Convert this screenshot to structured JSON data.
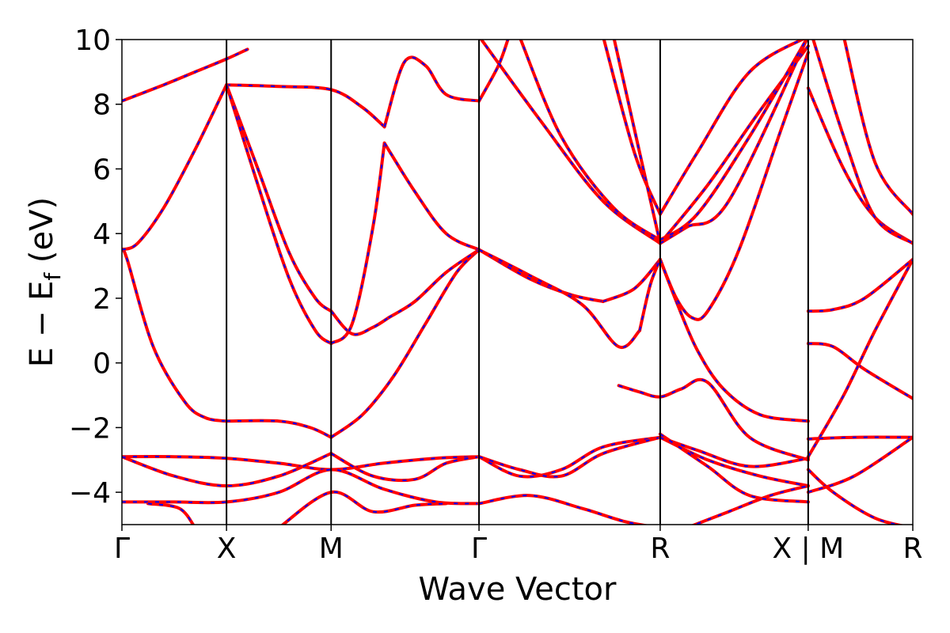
{
  "chart_data": {
    "type": "line",
    "xlabel": "Wave Vector",
    "ylabel_main": "E − E",
    "ylabel_sub": "f",
    "ylabel_unit": " (eV)",
    "ylim": [
      -5,
      10
    ],
    "yticks": [
      10,
      8,
      6,
      4,
      2,
      0,
      -2,
      -4
    ],
    "ytick_labels": [
      "10",
      "8",
      "6",
      "4",
      "2",
      "0",
      "−2",
      "−4"
    ],
    "xlim": [
      0,
      7.6
    ],
    "high_symmetry_points": [
      {
        "label": "Γ",
        "x": 0
      },
      {
        "label": "X",
        "x": 1
      },
      {
        "label": "M",
        "x": 2
      },
      {
        "label": "Γ",
        "x": 3.414
      },
      {
        "label": "R",
        "x": 5.146
      },
      {
        "label": "X | M",
        "x": 6.561
      },
      {
        "label": "R",
        "x": 7.561
      }
    ],
    "colors": {
      "dft": "#ff0000",
      "fit": "#0000ff"
    },
    "bands": [
      {
        "name": "b1",
        "x": [
          0,
          0.05,
          0.3,
          0.6,
          0.8,
          1.0
        ],
        "y": [
          3.5,
          3.2,
          0.5,
          -1.2,
          -1.7,
          -1.8
        ]
      },
      {
        "name": "b2",
        "x": [
          1.0,
          1.5,
          1.8,
          2.0
        ],
        "y": [
          -1.8,
          -1.8,
          -2.0,
          -2.3
        ]
      },
      {
        "name": "b3",
        "x": [
          2.0,
          2.3,
          2.6,
          2.9,
          3.2,
          3.414
        ],
        "y": [
          -2.3,
          -1.6,
          -0.4,
          1.2,
          2.8,
          3.5
        ]
      },
      {
        "name": "b4",
        "x": [
          0,
          0.15,
          0.4,
          0.7,
          1.0
        ],
        "y": [
          3.5,
          3.7,
          4.8,
          6.6,
          8.6
        ]
      },
      {
        "name": "b5",
        "x": [
          1.0,
          1.5,
          2.0,
          2.3,
          2.51
        ],
        "y": [
          8.6,
          8.55,
          8.45,
          7.9,
          7.3
        ]
      },
      {
        "name": "b6",
        "x": [
          1.0,
          1.3,
          1.6,
          1.85,
          2.0
        ],
        "y": [
          8.6,
          6.0,
          3.4,
          2.0,
          1.6
        ]
      },
      {
        "name": "b7",
        "x": [
          1.0,
          1.3,
          1.6,
          1.85,
          2.0
        ],
        "y": [
          8.6,
          5.5,
          2.6,
          1.0,
          0.6
        ]
      },
      {
        "name": "b8",
        "x": [
          2.0,
          2.2,
          2.4,
          2.55
        ],
        "y": [
          1.6,
          0.9,
          1.1,
          1.4
        ]
      },
      {
        "name": "b9",
        "x": [
          2.55,
          2.8,
          3.1,
          3.414
        ],
        "y": [
          1.4,
          1.9,
          2.8,
          3.5
        ]
      },
      {
        "name": "b10",
        "x": [
          2.0,
          2.2,
          2.4,
          2.51
        ],
        "y": [
          0.6,
          1.2,
          4.2,
          6.8
        ]
      },
      {
        "name": "b11",
        "x": [
          2.51,
          2.8,
          3.1,
          3.414
        ],
        "y": [
          6.8,
          5.3,
          4.0,
          3.5
        ]
      },
      {
        "name": "b12",
        "x": [
          3.414,
          3.9,
          4.3,
          4.6
        ],
        "y": [
          3.5,
          2.6,
          2.1,
          1.9
        ]
      },
      {
        "name": "b13",
        "x": [
          4.6,
          4.9,
          5.146
        ],
        "y": [
          1.9,
          2.3,
          3.2
        ]
      },
      {
        "name": "b14",
        "x": [
          3.414,
          3.9,
          4.4,
          4.75,
          4.95
        ],
        "y": [
          3.5,
          2.7,
          1.8,
          0.5,
          1.0
        ]
      },
      {
        "name": "b15",
        "x": [
          4.95,
          5.05,
          5.146
        ],
        "y": [
          1.0,
          2.4,
          3.2
        ]
      },
      {
        "name": "b16",
        "x": [
          0,
          0.4,
          0.7,
          1.0,
          1.2
        ],
        "y": [
          8.1,
          8.6,
          9.0,
          9.4,
          9.7
        ]
      },
      {
        "name": "b17",
        "x": [
          2.51,
          2.7,
          2.9,
          3.1,
          3.414
        ],
        "y": [
          7.3,
          9.3,
          9.2,
          8.3,
          8.1
        ]
      },
      {
        "name": "b18",
        "x": [
          3.414,
          3.6,
          3.7
        ],
        "y": [
          8.1,
          9.2,
          10.1
        ]
      },
      {
        "name": "b19",
        "x": [
          0,
          0.5,
          1.0,
          1.5,
          2.0,
          2.5,
          3.0,
          3.414
        ],
        "y": [
          -2.9,
          -2.9,
          -2.95,
          -3.1,
          -3.3,
          -3.1,
          -2.95,
          -2.9
        ]
      },
      {
        "name": "b20",
        "x": [
          0,
          0.5,
          1.0,
          1.5,
          2.0
        ],
        "y": [
          -2.9,
          -3.5,
          -3.8,
          -3.5,
          -2.8
        ]
      },
      {
        "name": "b21",
        "x": [
          2.0,
          2.4,
          2.8,
          3.1,
          3.414
        ],
        "y": [
          -2.8,
          -3.5,
          -3.6,
          -3.1,
          -2.9
        ]
      },
      {
        "name": "b22",
        "x": [
          3.414,
          3.8,
          4.2,
          4.6,
          5.146
        ],
        "y": [
          -2.9,
          -3.5,
          -3.3,
          -2.6,
          -2.3
        ]
      },
      {
        "name": "b23",
        "x": [
          3.414,
          3.8,
          4.2,
          4.6,
          5.146
        ],
        "y": [
          -2.9,
          -3.3,
          -3.5,
          -2.8,
          -2.3
        ]
      },
      {
        "name": "b24",
        "x": [
          0,
          0.5,
          1.0,
          1.5,
          2.0,
          2.5,
          3.0,
          3.414
        ],
        "y": [
          -4.3,
          -4.3,
          -4.3,
          -4.0,
          -3.3,
          -3.9,
          -4.3,
          -4.35
        ]
      },
      {
        "name": "b25",
        "x": [
          3.414,
          3.9,
          4.4,
          4.8,
          5.146
        ],
        "y": [
          -4.35,
          -4.1,
          -4.5,
          -4.9,
          -5.1
        ]
      },
      {
        "name": "b26",
        "x": [
          1.5,
          2.0,
          2.4,
          2.8,
          3.1
        ],
        "y": [
          -5.1,
          -4.0,
          -4.6,
          -4.4,
          -4.35
        ]
      },
      {
        "name": "b27",
        "x": [
          0.25,
          0.55,
          0.7
        ],
        "y": [
          -4.35,
          -4.5,
          -5.1
        ]
      },
      {
        "name": "b28",
        "x": [
          5.146,
          5.3,
          5.5,
          5.75,
          6.1,
          6.561
        ],
        "y": [
          3.2,
          1.9,
          0.4,
          -0.8,
          -1.6,
          -1.8
        ]
      },
      {
        "name": "b29",
        "x": [
          5.146,
          5.3,
          5.45,
          5.6,
          5.9,
          6.3,
          6.561
        ],
        "y": [
          3.2,
          2.0,
          1.4,
          1.6,
          3.5,
          7.2,
          9.6
        ]
      },
      {
        "name": "b30",
        "x": [
          4.6,
          4.9,
          5.146
        ],
        "y": [
          10.1,
          6.5,
          4.6
        ]
      },
      {
        "name": "b31",
        "x": [
          5.146,
          5.5,
          6.0,
          6.561
        ],
        "y": [
          4.6,
          6.5,
          9.0,
          10.1
        ]
      },
      {
        "name": "b32",
        "x": [
          4.7,
          4.95,
          5.146
        ],
        "y": [
          10.1,
          6.5,
          3.7
        ]
      },
      {
        "name": "b33",
        "x": [
          5.146,
          5.6,
          6.1,
          6.561
        ],
        "y": [
          3.7,
          5.5,
          7.8,
          9.8
        ]
      },
      {
        "name": "b34",
        "x": [
          3.414,
          4.0,
          4.6,
          5.146
        ],
        "y": [
          10.1,
          7.5,
          5.0,
          3.7
        ]
      },
      {
        "name": "b35",
        "x": [
          5.146,
          5.4,
          5.8,
          6.561
        ],
        "y": [
          3.7,
          4.2,
          5.0,
          10.1
        ]
      },
      {
        "name": "b36",
        "x": [
          3.8,
          4.2,
          4.7,
          5.146
        ],
        "y": [
          10.1,
          7.0,
          4.8,
          3.8
        ]
      },
      {
        "name": "b37",
        "x": [
          5.146,
          5.5,
          6.0,
          6.561
        ],
        "y": [
          3.8,
          4.6,
          7.0,
          10.1
        ]
      },
      {
        "name": "b38",
        "x": [
          4.75,
          4.95,
          5.146,
          5.35,
          5.6,
          6.0,
          6.561
        ],
        "y": [
          -0.7,
          -0.9,
          -1.05,
          -0.8,
          -0.6,
          -2.3,
          -3.0
        ]
      },
      {
        "name": "b39",
        "x": [
          5.146,
          5.5,
          6.0,
          6.561
        ],
        "y": [
          -2.3,
          -2.7,
          -3.2,
          -2.95
        ]
      },
      {
        "name": "b40",
        "x": [
          5.146,
          5.6,
          6.1,
          6.561
        ],
        "y": [
          -2.3,
          -3.0,
          -3.5,
          -3.8
        ]
      },
      {
        "name": "b41",
        "x": [
          5.4,
          5.8,
          6.2,
          6.561
        ],
        "y": [
          -5.1,
          -4.6,
          -4.1,
          -3.8
        ]
      },
      {
        "name": "b42",
        "x": [
          5.146,
          5.6,
          6.0,
          6.561
        ],
        "y": [
          -2.2,
          -3.2,
          -4.1,
          -4.3
        ]
      },
      {
        "name": "b43",
        "x": [
          6.561,
          6.8,
          7.1,
          7.561
        ],
        "y": [
          1.6,
          1.65,
          2.0,
          3.2
        ]
      },
      {
        "name": "b44",
        "x": [
          6.561,
          6.8,
          7.1,
          7.561
        ],
        "y": [
          0.6,
          0.5,
          -0.2,
          -1.1
        ]
      },
      {
        "name": "b45",
        "x": [
          6.561,
          6.9,
          7.2,
          7.561
        ],
        "y": [
          -2.9,
          -1.0,
          1.0,
          3.2
        ]
      },
      {
        "name": "b46",
        "x": [
          6.561,
          7.0,
          7.561
        ],
        "y": [
          -2.35,
          -2.3,
          -2.3
        ]
      },
      {
        "name": "b47",
        "x": [
          6.561,
          6.9,
          7.2,
          7.561
        ],
        "y": [
          8.5,
          6.0,
          4.5,
          3.7
        ]
      },
      {
        "name": "b48",
        "x": [
          6.6,
          6.9,
          7.2,
          7.561
        ],
        "y": [
          10.1,
          7.0,
          4.5,
          3.7
        ]
      },
      {
        "name": "b49",
        "x": [
          6.9,
          7.2,
          7.561
        ],
        "y": [
          10.1,
          6.2,
          4.6
        ]
      },
      {
        "name": "b50",
        "x": [
          6.561,
          6.8,
          7.2,
          7.561
        ],
        "y": [
          -3.3,
          -4.0,
          -4.8,
          -5.1
        ]
      },
      {
        "name": "b51",
        "x": [
          6.561,
          7.0,
          7.561
        ],
        "y": [
          -4.0,
          -3.5,
          -2.3
        ]
      }
    ]
  }
}
